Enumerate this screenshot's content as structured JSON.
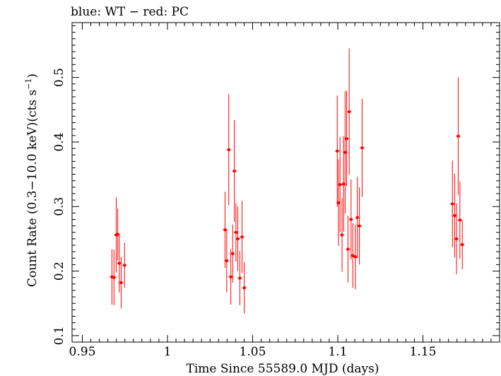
{
  "chart_data": {
    "type": "scatter",
    "title": "blue: WT − red: PC",
    "xlabel": "Time Since 55589.0 MJD (days)",
    "ylabel": "Count Rate (0.3−10.0 keV)(cts s",
    "ylabel_sup": "−1",
    "ylabel_close": ")",
    "xlim": [
      0.944,
      1.195
    ],
    "ylim": [
      0.09,
      0.585
    ],
    "x_ticks": [
      0.95,
      1,
      1.05,
      1.1,
      1.15
    ],
    "x_tick_labels": [
      "0.95",
      "1",
      "1.05",
      "1.1",
      "1.15"
    ],
    "y_ticks": [
      0.1,
      0.2,
      0.3,
      0.4,
      0.5
    ],
    "y_tick_labels": [
      "0.1",
      "0.2",
      "0.3",
      "0.4",
      "0.5"
    ],
    "grid": false,
    "series": [
      {
        "color": "#ff0000",
        "points": [
          {
            "x": 0.9674,
            "y": 0.191,
            "err": 0.043
          },
          {
            "x": 0.9686,
            "y": 0.19,
            "err": 0.043
          },
          {
            "x": 0.9699,
            "y": 0.256,
            "err": 0.058
          },
          {
            "x": 0.9708,
            "y": 0.257,
            "err": 0.04
          },
          {
            "x": 0.9717,
            "y": 0.212,
            "err": 0.045
          },
          {
            "x": 0.9728,
            "y": 0.182,
            "err": 0.04
          },
          {
            "x": 0.9748,
            "y": 0.209,
            "err": 0.035
          },
          {
            "x": 1.0338,
            "y": 0.264,
            "err": 0.059
          },
          {
            "x": 1.0348,
            "y": 0.216,
            "err": 0.049
          },
          {
            "x": 1.036,
            "y": 0.388,
            "err": 0.086
          },
          {
            "x": 1.0372,
            "y": 0.191,
            "err": 0.043
          },
          {
            "x": 1.0383,
            "y": 0.227,
            "err": 0.045
          },
          {
            "x": 1.0393,
            "y": 0.355,
            "err": 0.079
          },
          {
            "x": 1.0402,
            "y": 0.26,
            "err": 0.045
          },
          {
            "x": 1.0413,
            "y": 0.25,
            "err": 0.05
          },
          {
            "x": 1.0425,
            "y": 0.189,
            "err": 0.042
          },
          {
            "x": 1.0438,
            "y": 0.253,
            "err": 0.056
          },
          {
            "x": 1.0451,
            "y": 0.174,
            "err": 0.04
          },
          {
            "x": 1.0997,
            "y": 0.386,
            "err": 0.086
          },
          {
            "x": 1.1004,
            "y": 0.306,
            "err": 0.067
          },
          {
            "x": 1.1013,
            "y": 0.334,
            "err": 0.074
          },
          {
            "x": 1.1025,
            "y": 0.256,
            "err": 0.057
          },
          {
            "x": 1.1034,
            "y": 0.335,
            "err": 0.074
          },
          {
            "x": 1.1043,
            "y": 0.384,
            "err": 0.095
          },
          {
            "x": 1.1052,
            "y": 0.405,
            "err": 0.074
          },
          {
            "x": 1.106,
            "y": 0.234,
            "err": 0.052
          },
          {
            "x": 1.1067,
            "y": 0.447,
            "err": 0.098
          },
          {
            "x": 1.1078,
            "y": 0.28,
            "err": 0.062
          },
          {
            "x": 1.1088,
            "y": 0.224,
            "err": 0.05
          },
          {
            "x": 1.1103,
            "y": 0.222,
            "err": 0.05
          },
          {
            "x": 1.1115,
            "y": 0.283,
            "err": 0.063
          },
          {
            "x": 1.1127,
            "y": 0.27,
            "err": 0.06
          },
          {
            "x": 1.1143,
            "y": 0.391,
            "err": 0.076
          },
          {
            "x": 1.1673,
            "y": 0.304,
            "err": 0.067
          },
          {
            "x": 1.1686,
            "y": 0.286,
            "err": 0.065
          },
          {
            "x": 1.1697,
            "y": 0.25,
            "err": 0.055
          },
          {
            "x": 1.1707,
            "y": 0.409,
            "err": 0.091
          },
          {
            "x": 1.1717,
            "y": 0.279,
            "err": 0.06
          },
          {
            "x": 1.1731,
            "y": 0.241,
            "err": 0.038
          }
        ]
      }
    ]
  }
}
